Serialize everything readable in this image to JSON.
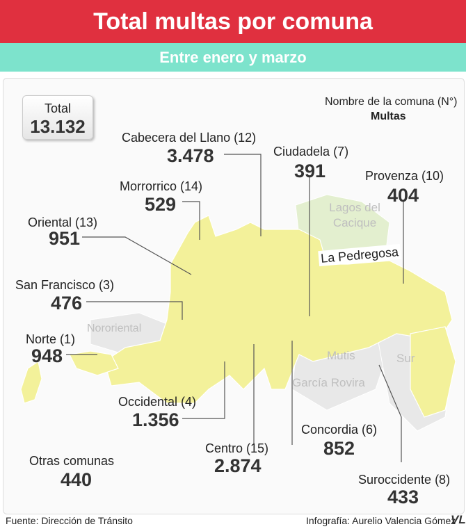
{
  "header": {
    "title": "Total multas por comuna",
    "subtitle": "Entre enero y marzo"
  },
  "total": {
    "label": "Total",
    "value": "13.132"
  },
  "legend": {
    "name": "Nombre de la comuna (N°)",
    "value": "Multas"
  },
  "communes": [
    {
      "name": "Cabecera del Llano (12)",
      "value": "3.478"
    },
    {
      "name": "Ciudadela (7)",
      "value": "391"
    },
    {
      "name": "Provenza (10)",
      "value": "404"
    },
    {
      "name": "Morrorrico (14)",
      "value": "529"
    },
    {
      "name": "Oriental (13)",
      "value": "951"
    },
    {
      "name": "San Francisco (3)",
      "value": "476"
    },
    {
      "name": "Norte (1)",
      "value": "948"
    },
    {
      "name": "Occidental (4)",
      "value": "1.356"
    },
    {
      "name": "Centro (15)",
      "value": "2.874"
    },
    {
      "name": "Concordia (6)",
      "value": "852"
    },
    {
      "name": "Suroccidente (8)",
      "value": "433"
    },
    {
      "name": "Otras comunas",
      "value": "440"
    }
  ],
  "map_labels": [
    "Lagos del Cacique",
    "La Pedregosa",
    "Nororiental",
    "Mutis",
    "Sur",
    "García Rovira"
  ],
  "footer": {
    "source": "Fuente: Dirección de Tránsito",
    "credit": "Infografía: Aurelio Valencia Gómez",
    "logo": "VL"
  }
}
